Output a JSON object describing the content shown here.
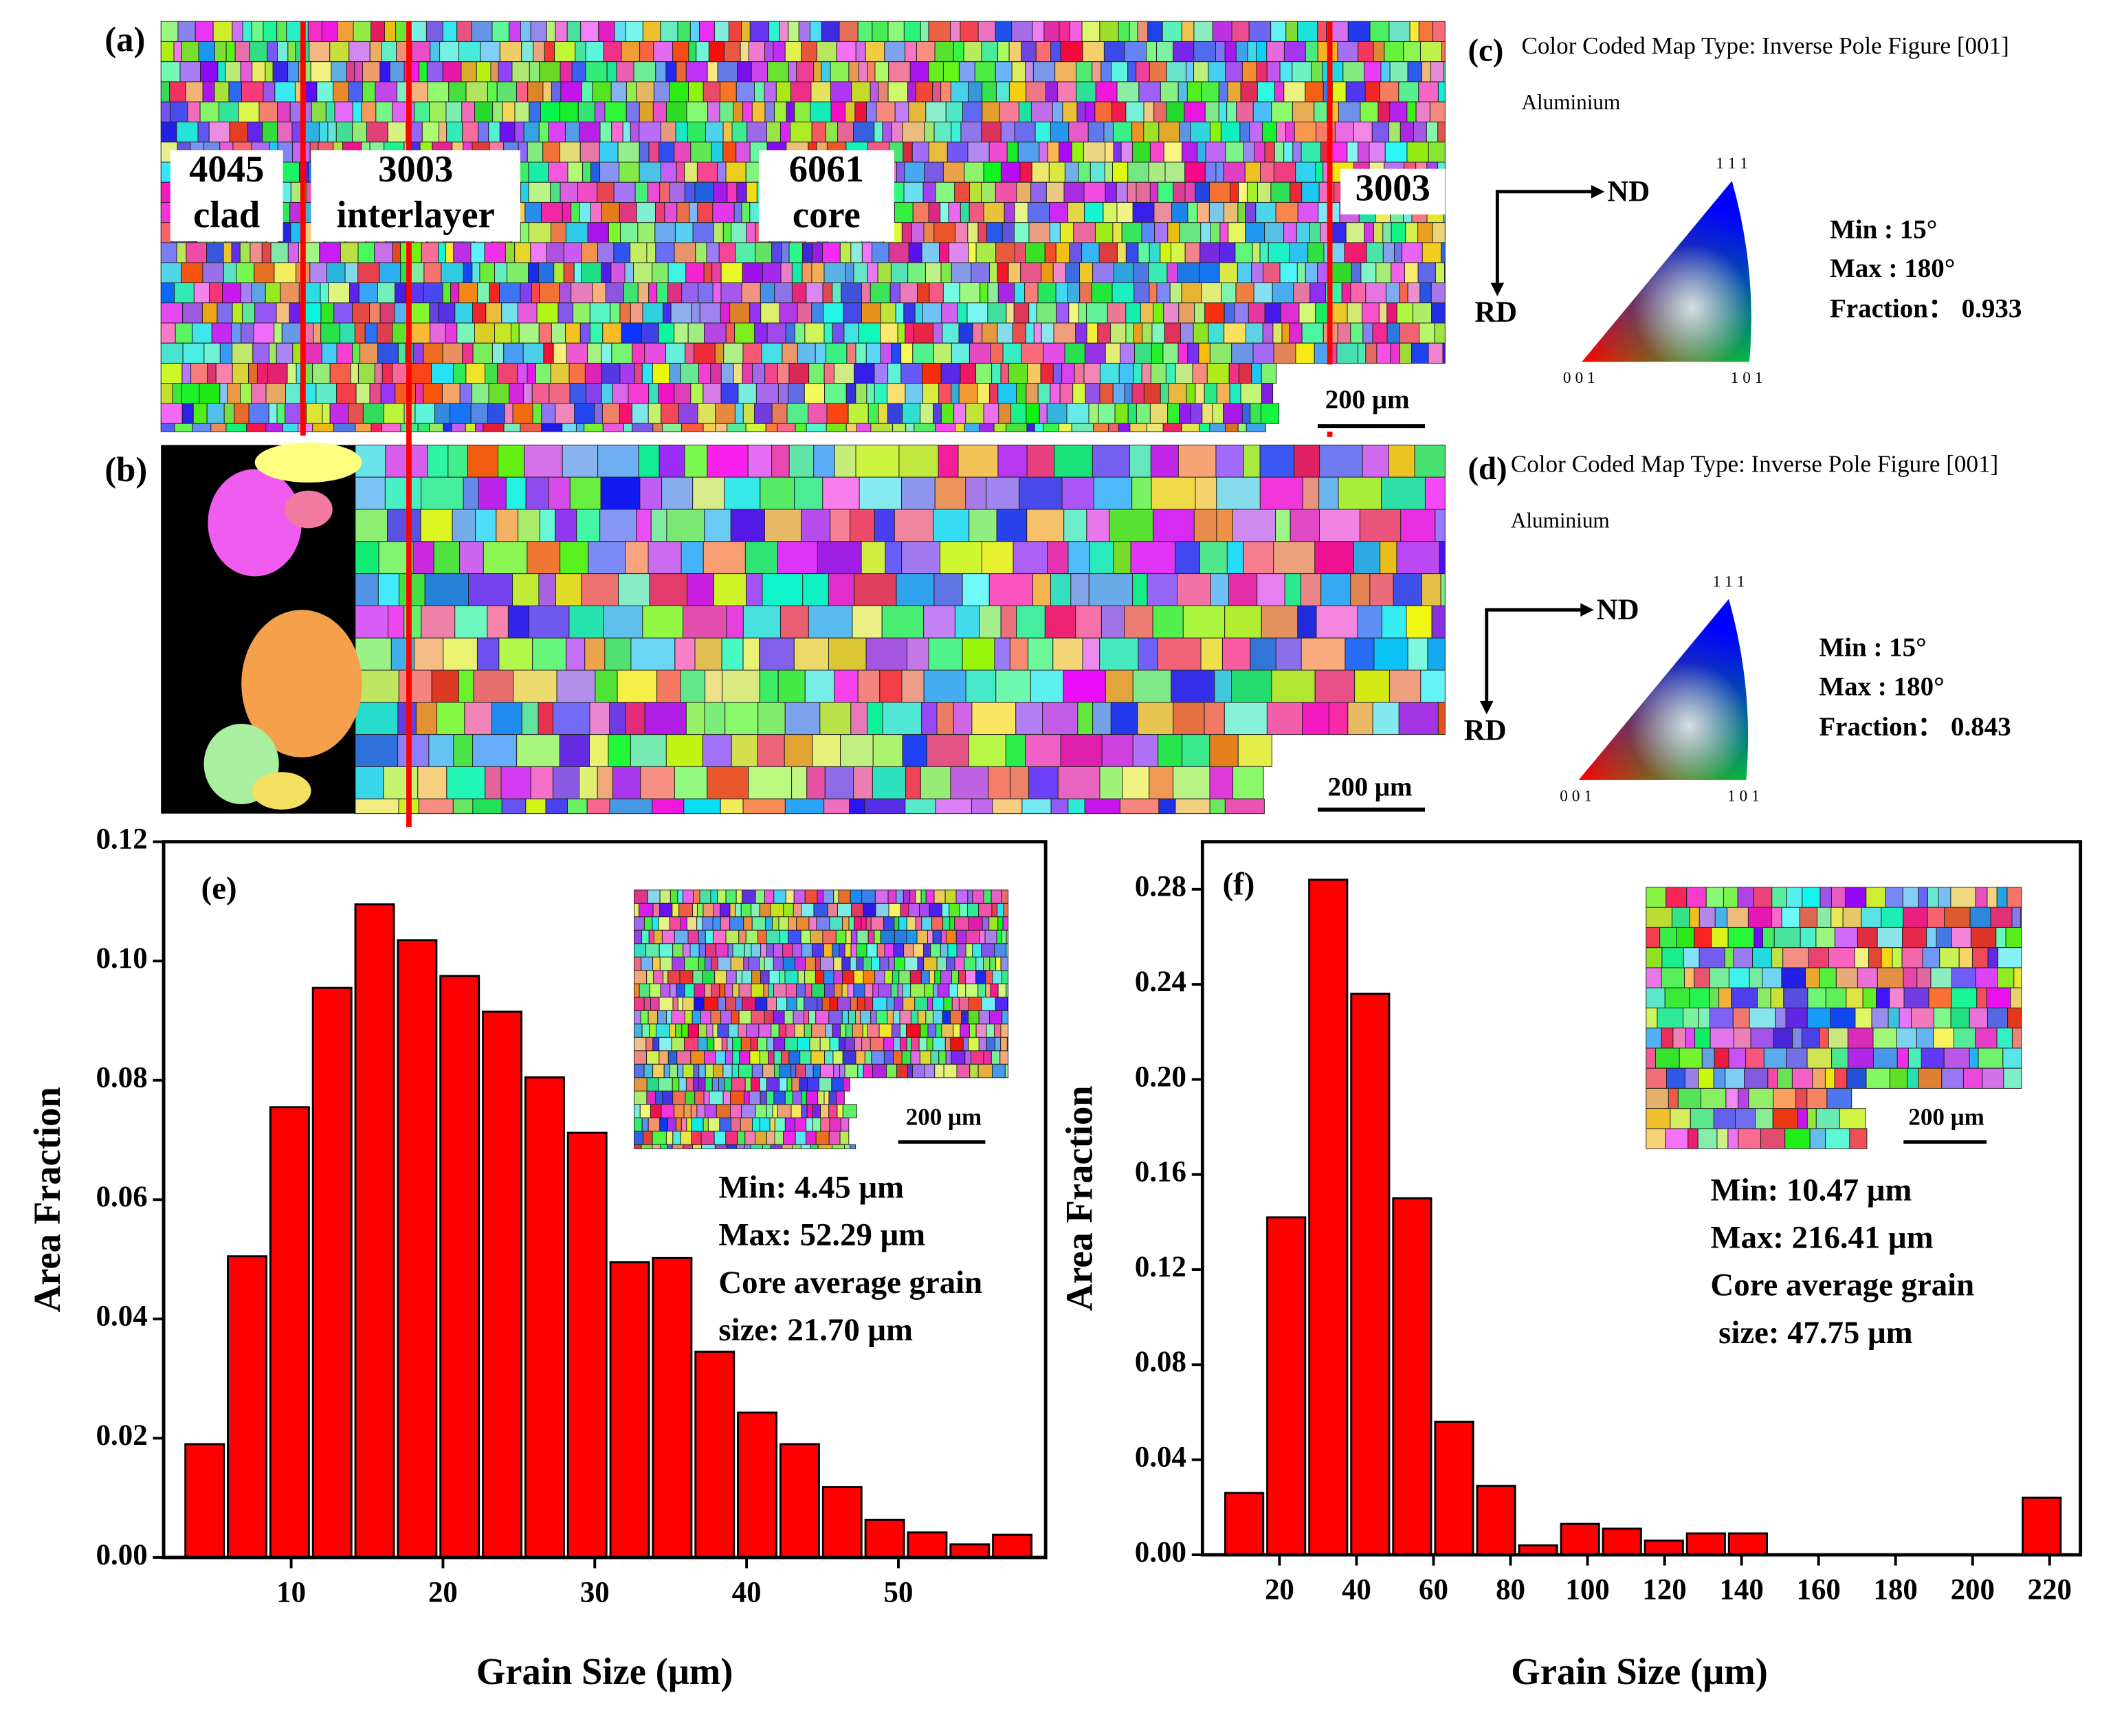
{
  "panels": {
    "a": {
      "label": "(a)",
      "regions": [
        [
          "4045",
          "clad"
        ],
        [
          "3003",
          "interlayer"
        ],
        [
          "6061",
          "core"
        ],
        [
          "3003"
        ]
      ],
      "scale": "200 μm"
    },
    "b": {
      "label": "(b)",
      "scale": "200 μm"
    },
    "c": {
      "label": "(c)",
      "map_type": "Color Coded Map Type: Inverse Pole Figure [001]",
      "phase": "Aluminium",
      "nd": "ND",
      "rd": "RD",
      "corners": [
        "1 1 1",
        "0 0 1",
        "1 0 1"
      ],
      "min": "Min : 15°",
      "max": "Max : 180°",
      "fraction": "Fraction： 0.933"
    },
    "d": {
      "label": "(d)",
      "map_type": "Color Coded Map Type: Inverse Pole Figure [001]",
      "phase": "Aluminium",
      "nd": "ND",
      "rd": "RD",
      "corners": [
        "1 1 1",
        "0 0 1",
        "1 0 1"
      ],
      "min": "Min : 15°",
      "max": "Max : 180°",
      "fraction": "Fraction： 0.843"
    }
  },
  "chart_data": [
    {
      "type": "histogram",
      "panel_label": "(e)",
      "x_label": "Grain Size (μm)",
      "y_label": "Area Fraction",
      "bins": [
        2.9,
        5.7,
        8.5,
        11.3,
        14.1,
        16.9,
        19.7,
        22.5,
        25.3,
        28.1,
        30.9,
        33.7,
        36.5,
        39.3,
        42.1,
        44.9,
        47.7,
        50.5,
        53.3,
        56.1,
        58.9
      ],
      "values": [
        0.019,
        0.0505,
        0.0755,
        0.0955,
        0.1095,
        0.1035,
        0.0975,
        0.0915,
        0.0805,
        0.0712,
        0.0495,
        0.0502,
        0.0345,
        0.0243,
        0.019,
        0.0118,
        0.0063,
        0.0042,
        0.0022,
        0.0038
      ],
      "color": "#ff0000",
      "xlim": [
        1.6,
        59.7
      ],
      "ylim": [
        0,
        0.12
      ],
      "xticks": [
        10,
        20,
        30,
        40,
        50
      ],
      "yticks": [
        {
          "value": 0,
          "label": "0.00"
        },
        {
          "value": 0.02,
          "label": "0.02"
        },
        {
          "value": 0.04,
          "label": "0.04"
        },
        {
          "value": 0.06,
          "label": "0.06"
        },
        {
          "value": 0.08,
          "label": "0.08"
        },
        {
          "value": 0.1,
          "label": "0.10"
        },
        {
          "value": 0.12,
          "label": "0.12"
        }
      ],
      "annotations": [
        "Min: 4.45 μm",
        "Max: 52.29 μm",
        "Core average grain",
        "size: 21.70 μm"
      ],
      "inset_scale": "200 μm"
    },
    {
      "type": "histogram",
      "panel_label": "(f)",
      "x_label": "Grain Size (μm)",
      "y_label": "Area Fraction",
      "bins": [
        5.4,
        16.3,
        27.2,
        38.1,
        49,
        59.9,
        70.8,
        81.7,
        92.6,
        103.5,
        114.4,
        125.3,
        136.2,
        147.1,
        158,
        168.9,
        179.8,
        190.7,
        201.6,
        212.5,
        223.4
      ],
      "values": [
        0.026,
        0.142,
        0.284,
        0.236,
        0.15,
        0.056,
        0.029,
        0.004,
        0.013,
        0.011,
        0.006,
        0.009,
        0.009,
        0,
        0,
        0,
        0,
        0,
        0,
        0.024
      ],
      "color": "#ff0000",
      "xlim": [
        0,
        228
      ],
      "ylim": [
        0,
        0.3
      ],
      "xticks": [
        20,
        40,
        60,
        80,
        100,
        120,
        140,
        160,
        180,
        200,
        220
      ],
      "yticks": [
        {
          "value": 0,
          "label": "0.00"
        },
        {
          "value": 0.04,
          "label": "0.04"
        },
        {
          "value": 0.08,
          "label": "0.08"
        },
        {
          "value": 0.12,
          "label": "0.12"
        },
        {
          "value": 0.16,
          "label": "0.16"
        },
        {
          "value": 0.2,
          "label": "0.20"
        },
        {
          "value": 0.24,
          "label": "0.24"
        },
        {
          "value": 0.28,
          "label": "0.28"
        }
      ],
      "annotations": [
        "Min: 10.47 μm",
        "Max: 216.41 μm",
        "Core average grain",
        " size: 47.75 μm"
      ],
      "inset_scale": "200 μm"
    }
  ]
}
